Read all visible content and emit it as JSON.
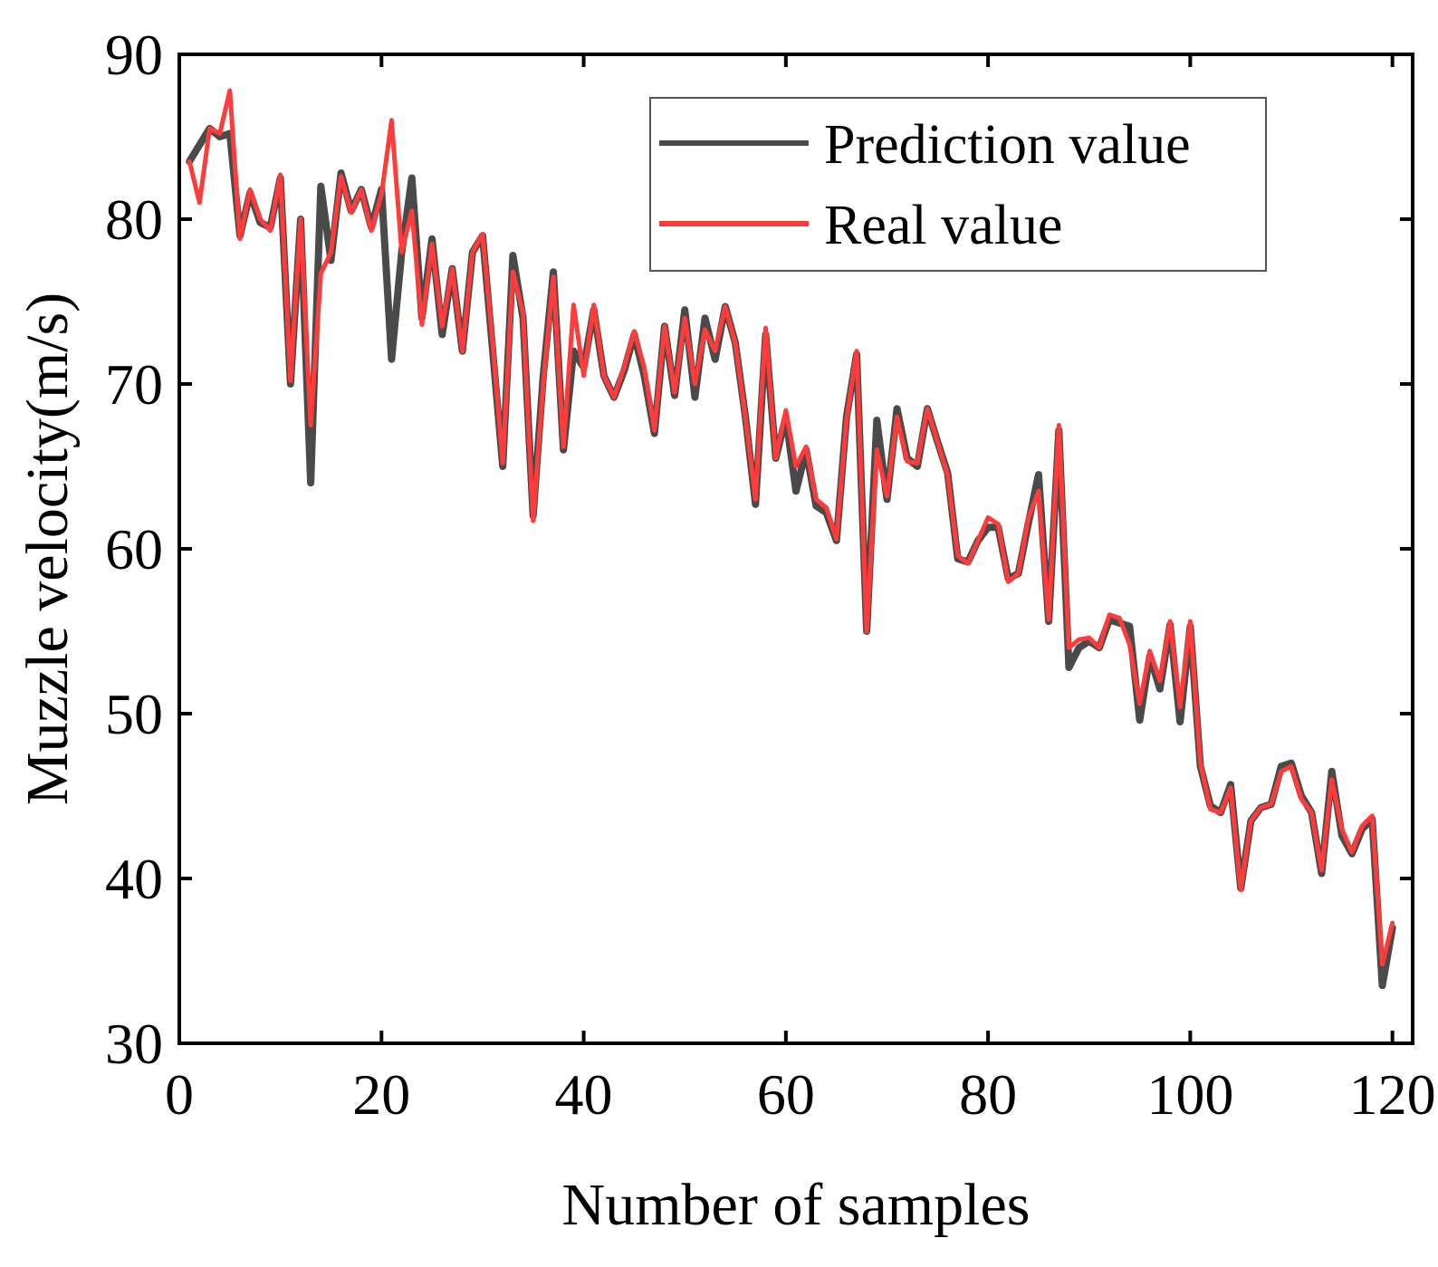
{
  "chart_data": {
    "type": "line",
    "title": "",
    "xlabel": "Number of samples",
    "ylabel": "Muzzle velocity(m/s)",
    "xlim": [
      0,
      122
    ],
    "ylim": [
      30,
      90
    ],
    "xticks": [
      0,
      20,
      40,
      60,
      80,
      100,
      120
    ],
    "yticks": [
      30,
      40,
      50,
      60,
      70,
      80,
      90
    ],
    "grid": false,
    "legend_position": "top-right",
    "series": [
      {
        "name": "Prediction value",
        "color": "#4a4a4a",
        "x": [
          1,
          2,
          3,
          4,
          5,
          6,
          7,
          8,
          9,
          10,
          11,
          12,
          13,
          14,
          15,
          16,
          17,
          18,
          19,
          20,
          21,
          22,
          23,
          24,
          25,
          26,
          27,
          28,
          29,
          30,
          31,
          32,
          33,
          34,
          35,
          36,
          37,
          38,
          39,
          40,
          41,
          42,
          43,
          44,
          45,
          46,
          47,
          48,
          49,
          50,
          51,
          52,
          53,
          54,
          55,
          56,
          57,
          58,
          59,
          60,
          61,
          62,
          63,
          64,
          65,
          66,
          67,
          68,
          69,
          70,
          71,
          72,
          73,
          74,
          75,
          76,
          77,
          78,
          79,
          80,
          81,
          82,
          83,
          84,
          85,
          86,
          87,
          88,
          89,
          90,
          91,
          92,
          93,
          94,
          95,
          96,
          97,
          98,
          99,
          100,
          101,
          102,
          103,
          104,
          105,
          106,
          107,
          108,
          109,
          110,
          111,
          112,
          113,
          114,
          115,
          116,
          117,
          118,
          119,
          120
        ],
        "values": [
          83.5,
          84.5,
          85.5,
          85.0,
          85.2,
          79.0,
          81.6,
          79.8,
          79.5,
          82.5,
          70.0,
          80.0,
          64.0,
          82.0,
          77.5,
          82.8,
          80.5,
          81.8,
          79.5,
          81.8,
          71.5,
          78.0,
          82.5,
          74.0,
          78.8,
          73.0,
          77.0,
          72.0,
          78.0,
          79.0,
          72.0,
          65.0,
          77.8,
          74.0,
          62.0,
          70.5,
          76.8,
          66.0,
          72.0,
          71.0,
          74.5,
          70.5,
          69.2,
          70.8,
          73.0,
          70.5,
          67.0,
          73.5,
          69.3,
          74.5,
          69.2,
          74.0,
          71.5,
          74.7,
          72.5,
          68.0,
          62.7,
          73.0,
          65.5,
          68.0,
          63.5,
          66.0,
          62.6,
          62.2,
          60.5,
          68.0,
          71.8,
          55.0,
          67.8,
          63.0,
          68.5,
          65.5,
          65.0,
          68.5,
          66.5,
          64.6,
          59.4,
          59.2,
          60.5,
          61.3,
          61.3,
          58.2,
          58.5,
          61.6,
          64.5,
          55.6,
          67.2,
          52.8,
          54.0,
          54.4,
          54.0,
          55.7,
          55.5,
          55.3,
          49.6,
          53.5,
          51.5,
          55.4,
          49.5,
          55.3,
          46.8,
          44.4,
          44.0,
          45.7,
          39.4,
          43.5,
          44.3,
          44.5,
          46.8,
          47.0,
          45.0,
          44.0,
          40.3,
          46.5,
          42.6,
          41.5,
          43.0,
          43.6,
          33.5,
          37.0
        ]
      },
      {
        "name": "Real value",
        "color": "#ff3c3c",
        "x": [
          1,
          2,
          3,
          4,
          5,
          6,
          7,
          8,
          9,
          10,
          11,
          12,
          13,
          14,
          15,
          16,
          17,
          18,
          19,
          20,
          21,
          22,
          23,
          24,
          25,
          26,
          27,
          28,
          29,
          30,
          31,
          32,
          33,
          34,
          35,
          36,
          37,
          38,
          39,
          40,
          41,
          42,
          43,
          44,
          45,
          46,
          47,
          48,
          49,
          50,
          51,
          52,
          53,
          54,
          55,
          56,
          57,
          58,
          59,
          60,
          61,
          62,
          63,
          64,
          65,
          66,
          67,
          68,
          69,
          70,
          71,
          72,
          73,
          74,
          75,
          76,
          77,
          78,
          79,
          80,
          81,
          82,
          83,
          84,
          85,
          86,
          87,
          88,
          89,
          90,
          91,
          92,
          93,
          94,
          95,
          96,
          97,
          98,
          99,
          100,
          101,
          102,
          103,
          104,
          105,
          106,
          107,
          108,
          109,
          110,
          111,
          112,
          113,
          114,
          115,
          116,
          117,
          118,
          119,
          120
        ],
        "values": [
          83.5,
          81.0,
          85.5,
          85.2,
          87.8,
          78.8,
          81.8,
          80.0,
          79.3,
          82.7,
          70.2,
          80.0,
          67.5,
          76.7,
          78.0,
          82.6,
          80.4,
          81.8,
          79.3,
          81.5,
          86.0,
          78.0,
          80.5,
          73.6,
          78.5,
          73.5,
          77.0,
          72.0,
          78.0,
          79.1,
          72.5,
          65.2,
          76.8,
          74.3,
          61.7,
          70.0,
          76.5,
          66.2,
          74.8,
          70.5,
          74.8,
          70.5,
          69.2,
          71.0,
          73.2,
          71.0,
          67.2,
          73.5,
          69.5,
          74.0,
          70.0,
          73.3,
          72.0,
          74.7,
          72.5,
          68.0,
          63.0,
          73.4,
          65.5,
          68.4,
          65.0,
          66.2,
          63.0,
          62.5,
          60.6,
          67.8,
          72.0,
          55.0,
          66.0,
          63.2,
          68.0,
          65.3,
          65.2,
          68.5,
          66.5,
          64.5,
          59.6,
          59.1,
          60.5,
          61.9,
          61.5,
          58.0,
          58.5,
          61.9,
          63.5,
          55.7,
          67.5,
          54.0,
          54.5,
          54.6,
          54.0,
          56.0,
          55.8,
          54.2,
          50.6,
          53.8,
          52.0,
          55.6,
          50.4,
          55.6,
          47.0,
          44.2,
          44.0,
          45.5,
          39.3,
          43.5,
          44.3,
          44.5,
          46.5,
          46.8,
          44.8,
          44.0,
          40.5,
          46.0,
          43.0,
          41.6,
          43.2,
          43.8,
          34.8,
          37.3
        ]
      }
    ]
  }
}
